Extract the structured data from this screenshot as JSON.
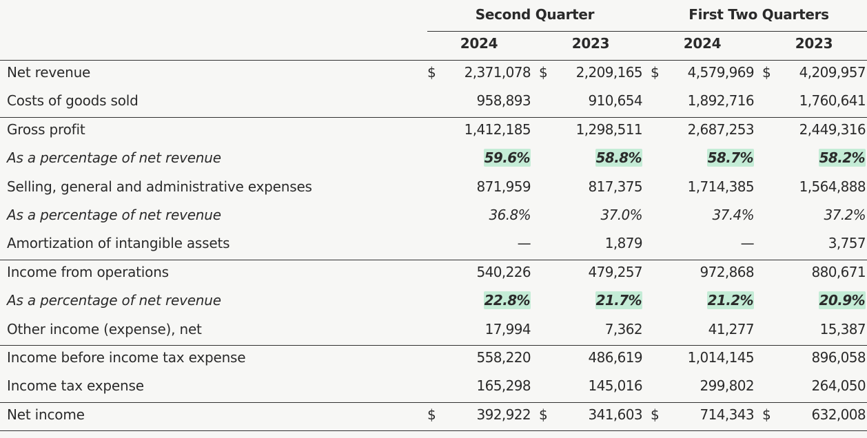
{
  "header": {
    "groups": [
      {
        "label": "Second Quarter"
      },
      {
        "label": "First Two Quarters"
      }
    ],
    "years": [
      "2024",
      "2023",
      "2024",
      "2023"
    ]
  },
  "rows": [
    {
      "label": "Net revenue",
      "type": "normal",
      "currency": true,
      "values": [
        "2,371,078",
        "2,209,165",
        "4,579,969",
        "4,209,957"
      ]
    },
    {
      "label": "Costs of goods sold",
      "type": "normal",
      "values": [
        "958,893",
        "910,654",
        "1,892,716",
        "1,760,641"
      ]
    },
    {
      "label": "Gross profit",
      "type": "normal",
      "values": [
        "1,412,185",
        "1,298,511",
        "2,687,253",
        "2,449,316"
      ]
    },
    {
      "label": "As a percentage of net revenue",
      "type": "pct",
      "highlight": true,
      "values": [
        "59.6%",
        "58.8%",
        "58.7%",
        "58.2%"
      ]
    },
    {
      "label": "Selling, general and administrative expenses",
      "type": "normal",
      "values": [
        "871,959",
        "817,375",
        "1,714,385",
        "1,564,888"
      ]
    },
    {
      "label": "As a percentage of net revenue",
      "type": "pct",
      "values": [
        "36.8%",
        "37.0%",
        "37.4%",
        "37.2%"
      ]
    },
    {
      "label": "Amortization of intangible assets",
      "type": "normal",
      "values": [
        "—",
        "1,879",
        "—",
        "3,757"
      ]
    },
    {
      "label": "Income from operations",
      "type": "normal",
      "values": [
        "540,226",
        "479,257",
        "972,868",
        "880,671"
      ]
    },
    {
      "label": "As a percentage of net revenue",
      "type": "pct",
      "highlight": true,
      "values": [
        "22.8%",
        "21.7%",
        "21.2%",
        "20.9%"
      ]
    },
    {
      "label": "Other income (expense), net",
      "type": "normal",
      "values": [
        "17,994",
        "7,362",
        "41,277",
        "15,387"
      ]
    },
    {
      "label": "Income before income tax expense",
      "type": "normal",
      "values": [
        "558,220",
        "486,619",
        "1,014,145",
        "896,058"
      ]
    },
    {
      "label": "Income tax expense",
      "type": "normal",
      "values": [
        "165,298",
        "145,016",
        "299,802",
        "264,050"
      ]
    },
    {
      "label": "Net income",
      "type": "normal",
      "currency": true,
      "values": [
        "392,922",
        "341,603",
        "714,343",
        "632,008"
      ]
    }
  ],
  "currency_symbol": "$",
  "colors": {
    "background": "#f7f7f5",
    "text": "#2a2a2a",
    "highlight": "#c4ecd6",
    "rule": "#2f2f2f"
  }
}
